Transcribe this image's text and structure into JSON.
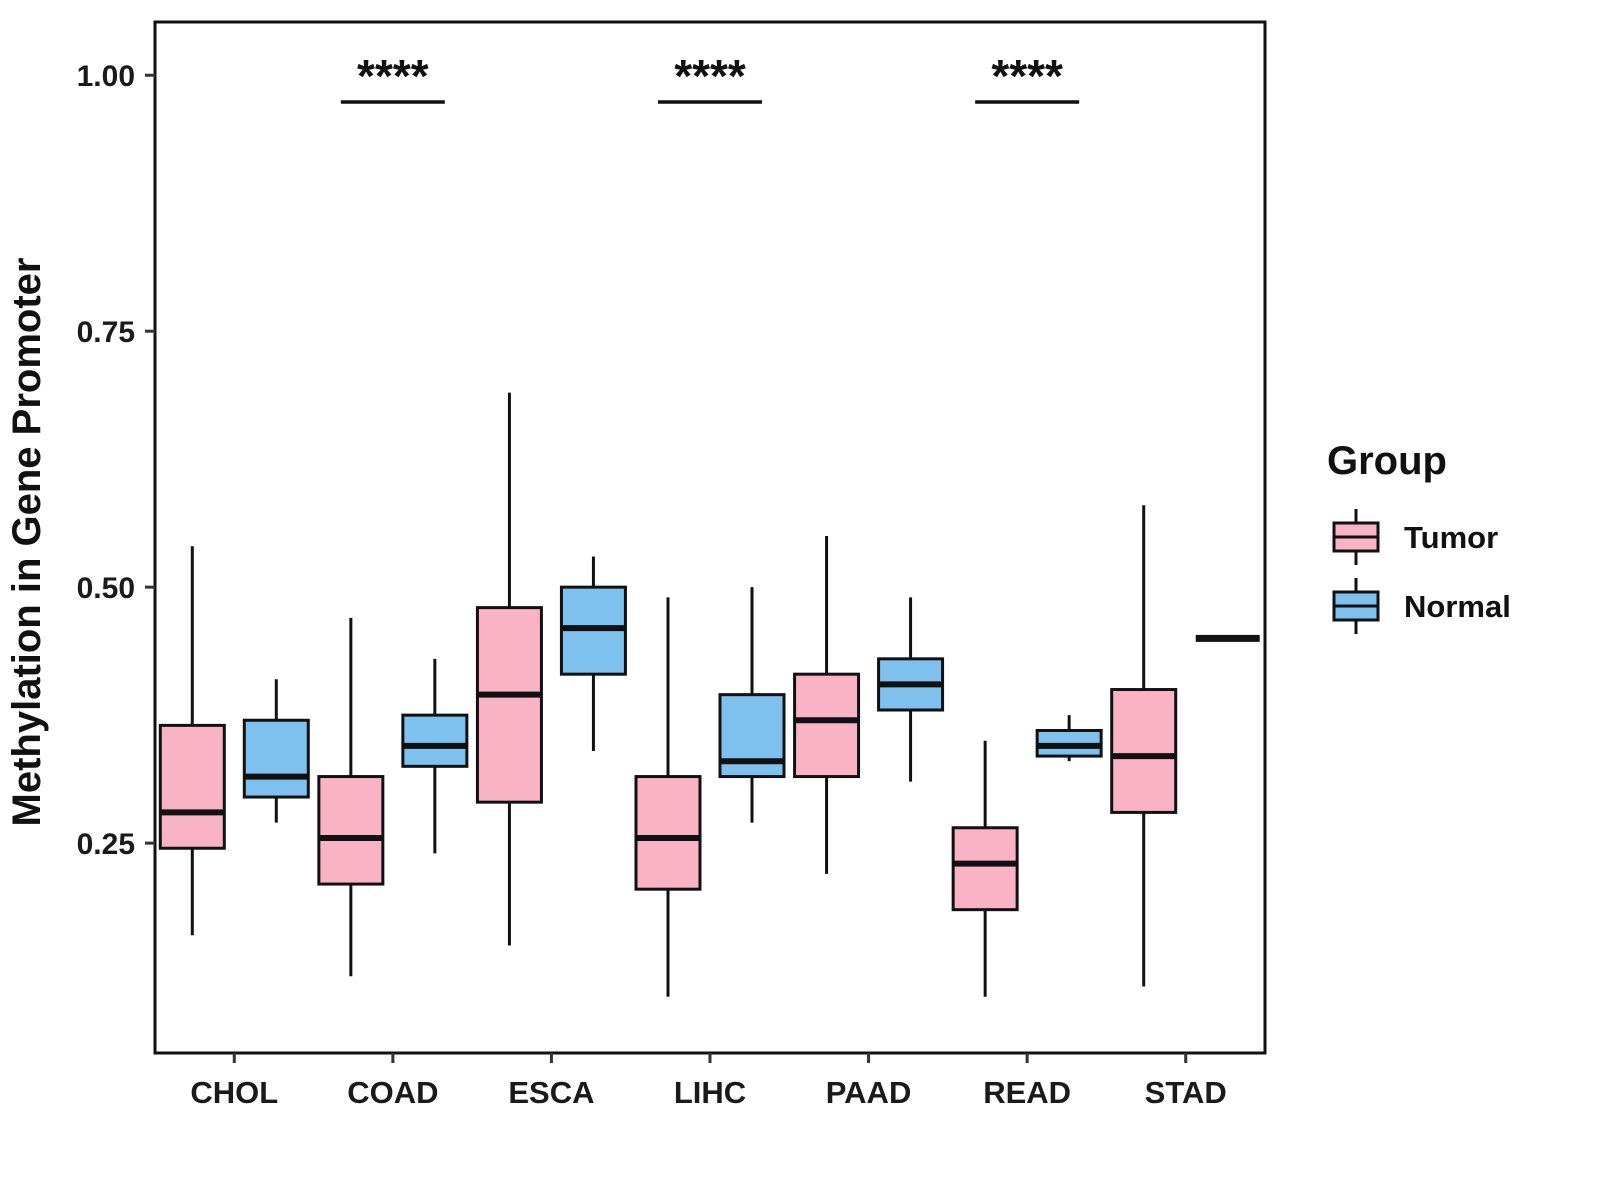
{
  "chart_data": {
    "type": "boxplot",
    "title": "",
    "xlabel": "",
    "ylabel": "Methylation in Gene Promoter",
    "ylim": [
      0.045,
      1.052
    ],
    "yticks": [
      0.25,
      0.5,
      0.75,
      1.0
    ],
    "grid": false,
    "categories": [
      "CHOL",
      "COAD",
      "ESCA",
      "LIHC",
      "PAAD",
      "READ",
      "STAD"
    ],
    "groups": [
      {
        "name": "Tumor",
        "fill": "#F9B3C4"
      },
      {
        "name": "Normal",
        "fill": "#7EC1EE"
      }
    ],
    "series": [
      {
        "name": "Tumor",
        "boxes": [
          {
            "category": "CHOL",
            "min": 0.16,
            "q1": 0.245,
            "median": 0.28,
            "q3": 0.365,
            "max": 0.54
          },
          {
            "category": "COAD",
            "min": 0.12,
            "q1": 0.21,
            "median": 0.255,
            "q3": 0.315,
            "max": 0.47
          },
          {
            "category": "ESCA",
            "min": 0.15,
            "q1": 0.29,
            "median": 0.395,
            "q3": 0.48,
            "max": 0.69
          },
          {
            "category": "LIHC",
            "min": 0.1,
            "q1": 0.205,
            "median": 0.255,
            "q3": 0.315,
            "max": 0.49
          },
          {
            "category": "PAAD",
            "min": 0.22,
            "q1": 0.315,
            "median": 0.37,
            "q3": 0.415,
            "max": 0.55
          },
          {
            "category": "READ",
            "min": 0.1,
            "q1": 0.185,
            "median": 0.23,
            "q3": 0.265,
            "max": 0.35
          },
          {
            "category": "STAD",
            "min": 0.11,
            "q1": 0.28,
            "median": 0.335,
            "q3": 0.4,
            "max": 0.58
          }
        ]
      },
      {
        "name": "Normal",
        "boxes": [
          {
            "category": "CHOL",
            "min": 0.27,
            "q1": 0.295,
            "median": 0.315,
            "q3": 0.37,
            "max": 0.41
          },
          {
            "category": "COAD",
            "min": 0.24,
            "q1": 0.325,
            "median": 0.345,
            "q3": 0.375,
            "max": 0.43
          },
          {
            "category": "ESCA",
            "min": 0.34,
            "q1": 0.415,
            "median": 0.46,
            "q3": 0.5,
            "max": 0.53
          },
          {
            "category": "LIHC",
            "min": 0.27,
            "q1": 0.315,
            "median": 0.33,
            "q3": 0.395,
            "max": 0.5
          },
          {
            "category": "PAAD",
            "min": 0.31,
            "q1": 0.38,
            "median": 0.405,
            "q3": 0.43,
            "max": 0.49
          },
          {
            "category": "READ",
            "min": 0.33,
            "q1": 0.335,
            "median": 0.345,
            "q3": 0.36,
            "max": 0.375
          },
          {
            "category": "STAD",
            "min": 0.45,
            "q1": 0.45,
            "median": 0.45,
            "q3": 0.45,
            "max": 0.45,
            "flat": true
          }
        ]
      }
    ],
    "significance": [
      {
        "category": "COAD",
        "label": "****"
      },
      {
        "category": "LIHC",
        "label": "****"
      },
      {
        "category": "READ",
        "label": "****"
      }
    ],
    "legend": {
      "title": "Group",
      "position": "right",
      "entries": [
        "Tumor",
        "Normal"
      ]
    },
    "style": {
      "stroke_color": "#111111",
      "text_color": "#1a1a1a",
      "panel_background": "#ffffff"
    }
  }
}
